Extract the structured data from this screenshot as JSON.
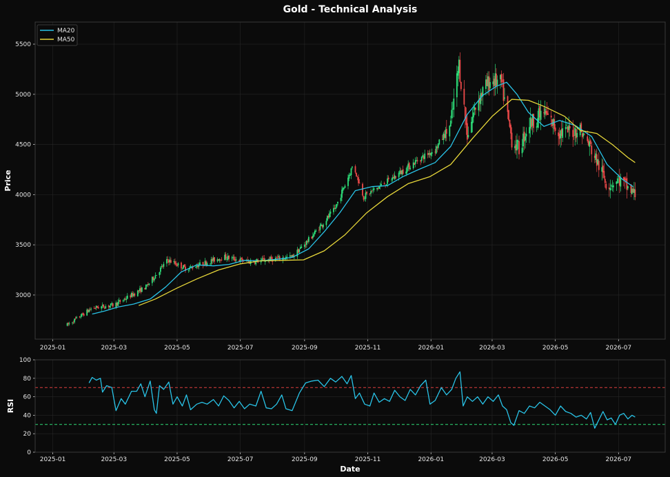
{
  "chart_data": {
    "type": "candlestick",
    "title": "Gold - Technical Analysis",
    "colors": {
      "background": "#0b0b0b",
      "panel_border": "#3a3a3a",
      "grid": "#262626",
      "up": "#2ee07a",
      "down": "#f04a4a",
      "ma20": "#29c4e8",
      "ma50": "#e8d83a",
      "rsi": "#29c4e8",
      "overbought": "#e04040",
      "oversold": "#2ee07a",
      "text": "#e6e6e6"
    },
    "price_panel": {
      "ylabel": "Price",
      "ylim": [
        2560,
        5720
      ],
      "yticks": [
        3000,
        3500,
        4000,
        4500,
        5000,
        5500
      ],
      "grid": true,
      "legend_position": "top-left",
      "series": [
        {
          "name": "MA20",
          "points": [
            [
              "2025-02-08",
              2810
            ],
            [
              "2025-02-20",
              2840
            ],
            [
              "2025-03-05",
              2880
            ],
            [
              "2025-03-20",
              2910
            ],
            [
              "2025-04-05",
              2960
            ],
            [
              "2025-04-20",
              3080
            ],
            [
              "2025-05-05",
              3230
            ],
            [
              "2025-05-20",
              3300
            ],
            [
              "2025-06-05",
              3290
            ],
            [
              "2025-06-20",
              3305
            ],
            [
              "2025-07-05",
              3345
            ],
            [
              "2025-07-20",
              3340
            ],
            [
              "2025-08-05",
              3355
            ],
            [
              "2025-08-20",
              3375
            ],
            [
              "2025-09-05",
              3460
            ],
            [
              "2025-09-20",
              3630
            ],
            [
              "2025-10-05",
              3820
            ],
            [
              "2025-10-20",
              4040
            ],
            [
              "2025-11-05",
              4080
            ],
            [
              "2025-11-20",
              4090
            ],
            [
              "2025-12-05",
              4180
            ],
            [
              "2025-12-20",
              4250
            ],
            [
              "2026-01-05",
              4320
            ],
            [
              "2026-01-20",
              4480
            ],
            [
              "2026-02-05",
              4800
            ],
            [
              "2026-02-20",
              4990
            ],
            [
              "2026-03-05",
              5080
            ],
            [
              "2026-03-15",
              5120
            ],
            [
              "2026-03-25",
              5000
            ],
            [
              "2026-04-05",
              4820
            ],
            [
              "2026-04-20",
              4680
            ],
            [
              "2026-05-05",
              4740
            ],
            [
              "2026-05-20",
              4690
            ],
            [
              "2026-06-05",
              4580
            ],
            [
              "2026-06-20",
              4300
            ],
            [
              "2026-07-05",
              4150
            ],
            [
              "2026-07-15",
              4080
            ]
          ]
        },
        {
          "name": "MA50",
          "points": [
            [
              "2025-03-25",
              2895
            ],
            [
              "2025-04-10",
              2960
            ],
            [
              "2025-05-01",
              3070
            ],
            [
              "2025-05-20",
              3160
            ],
            [
              "2025-06-10",
              3250
            ],
            [
              "2025-07-01",
              3310
            ],
            [
              "2025-07-20",
              3340
            ],
            [
              "2025-08-10",
              3345
            ],
            [
              "2025-08-31",
              3350
            ],
            [
              "2025-09-20",
              3440
            ],
            [
              "2025-10-10",
              3600
            ],
            [
              "2025-10-31",
              3820
            ],
            [
              "2025-11-20",
              3980
            ],
            [
              "2025-12-10",
              4110
            ],
            [
              "2025-12-31",
              4180
            ],
            [
              "2026-01-20",
              4300
            ],
            [
              "2026-02-10",
              4560
            ],
            [
              "2026-03-01",
              4780
            ],
            [
              "2026-03-20",
              4950
            ],
            [
              "2026-04-05",
              4940
            ],
            [
              "2026-04-20",
              4880
            ],
            [
              "2026-05-10",
              4780
            ],
            [
              "2026-05-25",
              4640
            ],
            [
              "2026-06-10",
              4610
            ],
            [
              "2026-06-25",
              4500
            ],
            [
              "2026-07-10",
              4370
            ],
            [
              "2026-07-17",
              4320
            ]
          ]
        }
      ],
      "candles": []
    },
    "rsi_panel": {
      "ylabel": "RSI",
      "ylim": [
        0,
        100
      ],
      "yticks": [
        0,
        20,
        40,
        60,
        80,
        100
      ],
      "overbought": 70,
      "oversold": 30,
      "series": {
        "name": "RSI",
        "points": [
          [
            "2025-02-05",
            75
          ],
          [
            "2025-02-08",
            81
          ],
          [
            "2025-02-12",
            78
          ],
          [
            "2025-02-16",
            80
          ],
          [
            "2025-02-18",
            65
          ],
          [
            "2025-02-22",
            72
          ],
          [
            "2025-02-27",
            70
          ],
          [
            "2025-03-03",
            45
          ],
          [
            "2025-03-08",
            58
          ],
          [
            "2025-03-12",
            52
          ],
          [
            "2025-03-18",
            66
          ],
          [
            "2025-03-23",
            66
          ],
          [
            "2025-03-27",
            74
          ],
          [
            "2025-03-31",
            60
          ],
          [
            "2025-04-05",
            77
          ],
          [
            "2025-04-09",
            46
          ],
          [
            "2025-04-11",
            42
          ],
          [
            "2025-04-14",
            72
          ],
          [
            "2025-04-18",
            68
          ],
          [
            "2025-04-23",
            76
          ],
          [
            "2025-04-27",
            52
          ],
          [
            "2025-05-01",
            60
          ],
          [
            "2025-05-06",
            50
          ],
          [
            "2025-05-10",
            62
          ],
          [
            "2025-05-14",
            46
          ],
          [
            "2025-05-20",
            52
          ],
          [
            "2025-05-25",
            54
          ],
          [
            "2025-05-30",
            52
          ],
          [
            "2025-06-05",
            57
          ],
          [
            "2025-06-10",
            50
          ],
          [
            "2025-06-15",
            61
          ],
          [
            "2025-06-20",
            56
          ],
          [
            "2025-06-25",
            48
          ],
          [
            "2025-06-30",
            55
          ],
          [
            "2025-07-05",
            47
          ],
          [
            "2025-07-10",
            52
          ],
          [
            "2025-07-16",
            50
          ],
          [
            "2025-07-21",
            66
          ],
          [
            "2025-07-26",
            48
          ],
          [
            "2025-07-31",
            47
          ],
          [
            "2025-08-05",
            52
          ],
          [
            "2025-08-10",
            62
          ],
          [
            "2025-08-14",
            47
          ],
          [
            "2025-08-20",
            45
          ],
          [
            "2025-08-27",
            64
          ],
          [
            "2025-09-02",
            75
          ],
          [
            "2025-09-08",
            77
          ],
          [
            "2025-09-14",
            78
          ],
          [
            "2025-09-20",
            71
          ],
          [
            "2025-09-26",
            80
          ],
          [
            "2025-10-01",
            76
          ],
          [
            "2025-10-07",
            82
          ],
          [
            "2025-10-12",
            74
          ],
          [
            "2025-10-16",
            83
          ],
          [
            "2025-10-20",
            58
          ],
          [
            "2025-10-24",
            64
          ],
          [
            "2025-10-29",
            52
          ],
          [
            "2025-11-03",
            50
          ],
          [
            "2025-11-07",
            64
          ],
          [
            "2025-11-12",
            54
          ],
          [
            "2025-11-17",
            58
          ],
          [
            "2025-11-22",
            55
          ],
          [
            "2025-11-27",
            67
          ],
          [
            "2025-12-02",
            60
          ],
          [
            "2025-12-07",
            56
          ],
          [
            "2025-12-12",
            68
          ],
          [
            "2025-12-17",
            62
          ],
          [
            "2025-12-22",
            72
          ],
          [
            "2025-12-27",
            78
          ],
          [
            "2025-12-31",
            52
          ],
          [
            "2026-01-05",
            56
          ],
          [
            "2026-01-11",
            70
          ],
          [
            "2026-01-16",
            62
          ],
          [
            "2026-01-21",
            68
          ],
          [
            "2026-01-25",
            80
          ],
          [
            "2026-01-29",
            87
          ],
          [
            "2026-02-01",
            50
          ],
          [
            "2026-02-05",
            60
          ],
          [
            "2026-02-10",
            55
          ],
          [
            "2026-02-15",
            60
          ],
          [
            "2026-02-20",
            52
          ],
          [
            "2026-02-25",
            60
          ],
          [
            "2026-03-02",
            55
          ],
          [
            "2026-03-07",
            62
          ],
          [
            "2026-03-11",
            50
          ],
          [
            "2026-03-15",
            46
          ],
          [
            "2026-03-19",
            32
          ],
          [
            "2026-03-22",
            29
          ],
          [
            "2026-03-27",
            45
          ],
          [
            "2026-04-01",
            42
          ],
          [
            "2026-04-06",
            50
          ],
          [
            "2026-04-11",
            48
          ],
          [
            "2026-04-16",
            54
          ],
          [
            "2026-04-21",
            50
          ],
          [
            "2026-04-26",
            46
          ],
          [
            "2026-05-01",
            40
          ],
          [
            "2026-05-06",
            50
          ],
          [
            "2026-05-11",
            44
          ],
          [
            "2026-05-16",
            42
          ],
          [
            "2026-05-21",
            38
          ],
          [
            "2026-05-26",
            40
          ],
          [
            "2026-05-31",
            36
          ],
          [
            "2026-06-04",
            43
          ],
          [
            "2026-06-08",
            26
          ],
          [
            "2026-06-12",
            35
          ],
          [
            "2026-06-16",
            44
          ],
          [
            "2026-06-20",
            35
          ],
          [
            "2026-06-24",
            37
          ],
          [
            "2026-06-28",
            30
          ],
          [
            "2026-07-02",
            40
          ],
          [
            "2026-07-06",
            42
          ],
          [
            "2026-07-10",
            36
          ],
          [
            "2026-07-14",
            40
          ],
          [
            "2026-07-17",
            38
          ]
        ]
      }
    },
    "x_axis": {
      "xlabel": "Date",
      "xlim": [
        "2024-12-15",
        "2026-08-15"
      ],
      "ticks": [
        "2025-01",
        "2025-03",
        "2025-05",
        "2025-07",
        "2025-09",
        "2025-11",
        "2026-01",
        "2026-03",
        "2026-05",
        "2026-07"
      ]
    }
  }
}
